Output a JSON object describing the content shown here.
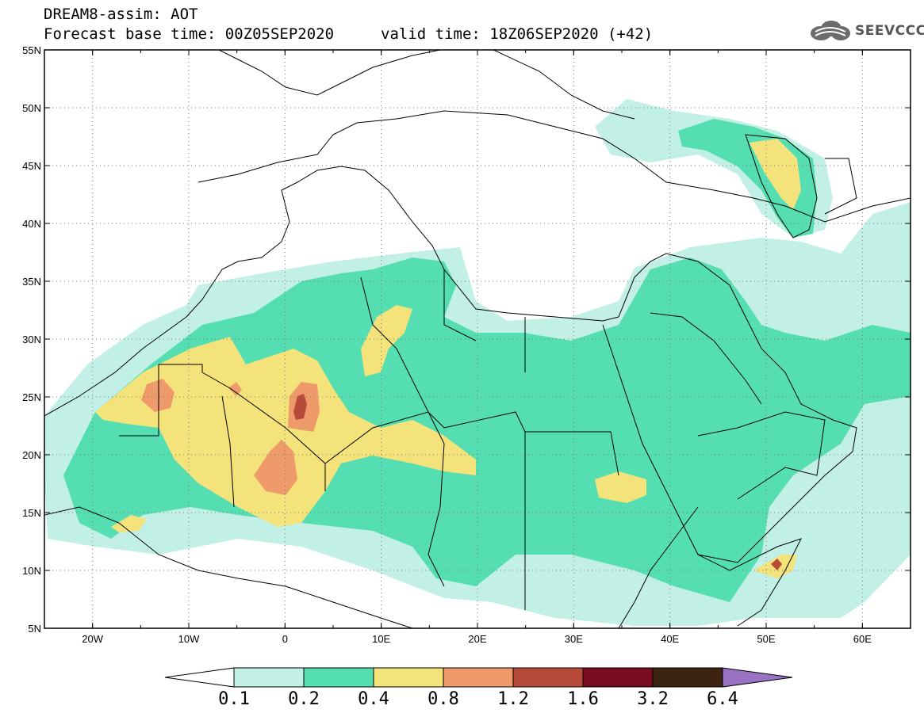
{
  "header": {
    "title": "DREAM8-assim: AOT",
    "base_time": "Forecast base time: 00Z05SEP2020",
    "valid_time": "valid time: 18Z06SEP2020 (+42)"
  },
  "logo": {
    "text": "SEEVCCC",
    "icon": "cloud-icon"
  },
  "map": {
    "lon_ticks": [
      "20W",
      "10W",
      "0",
      "10E",
      "20E",
      "30E",
      "40E",
      "50E",
      "60E"
    ],
    "lat_ticks": [
      "55N",
      "50N",
      "45N",
      "40N",
      "35N",
      "30N",
      "25N",
      "20N",
      "15N",
      "10N",
      "5N"
    ],
    "lon_range": [
      -25,
      65
    ],
    "lat_range": [
      5,
      55
    ],
    "grid": "dotted"
  },
  "colorbar": {
    "labels": [
      "0.1",
      "0.2",
      "0.4",
      "0.8",
      "1.2",
      "1.6",
      "3.2",
      "6.4"
    ],
    "colors": [
      "#c2f0e6",
      "#55deb2",
      "#f4e27a",
      "#ee9a6a",
      "#b84a3a",
      "#7a0c20",
      "#3d2412",
      "#9a72c4"
    ]
  }
}
